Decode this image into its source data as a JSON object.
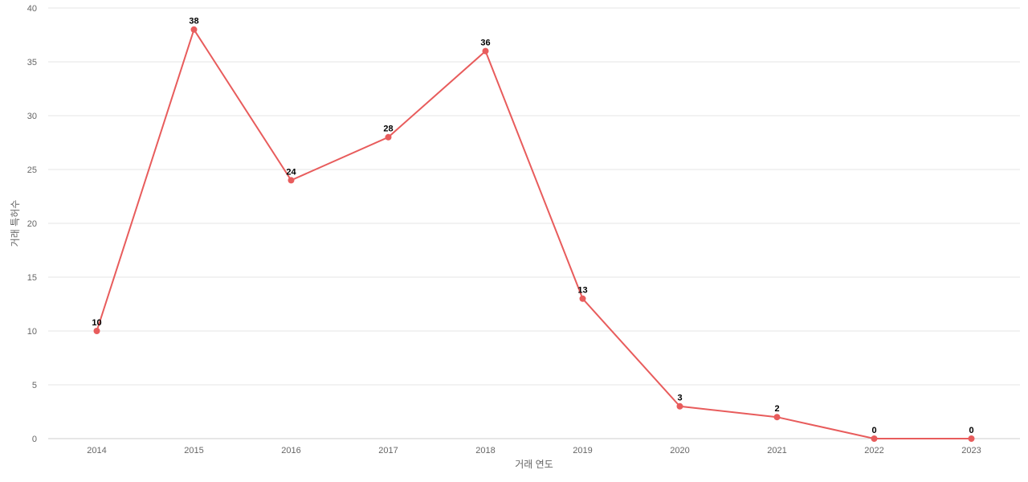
{
  "chart_data": {
    "type": "line",
    "x_label": "거래 연도",
    "y_label": "거래 특허수",
    "categories": [
      "2014",
      "2015",
      "2016",
      "2017",
      "2018",
      "2019",
      "2020",
      "2021",
      "2022",
      "2023"
    ],
    "values": [
      10,
      38,
      24,
      28,
      36,
      13,
      3,
      2,
      0,
      0
    ],
    "color": "#e85c5c",
    "ylim": [
      0,
      40
    ],
    "yticks": [
      0,
      5,
      10,
      15,
      20,
      25,
      30,
      35,
      40
    ],
    "grid": true
  }
}
